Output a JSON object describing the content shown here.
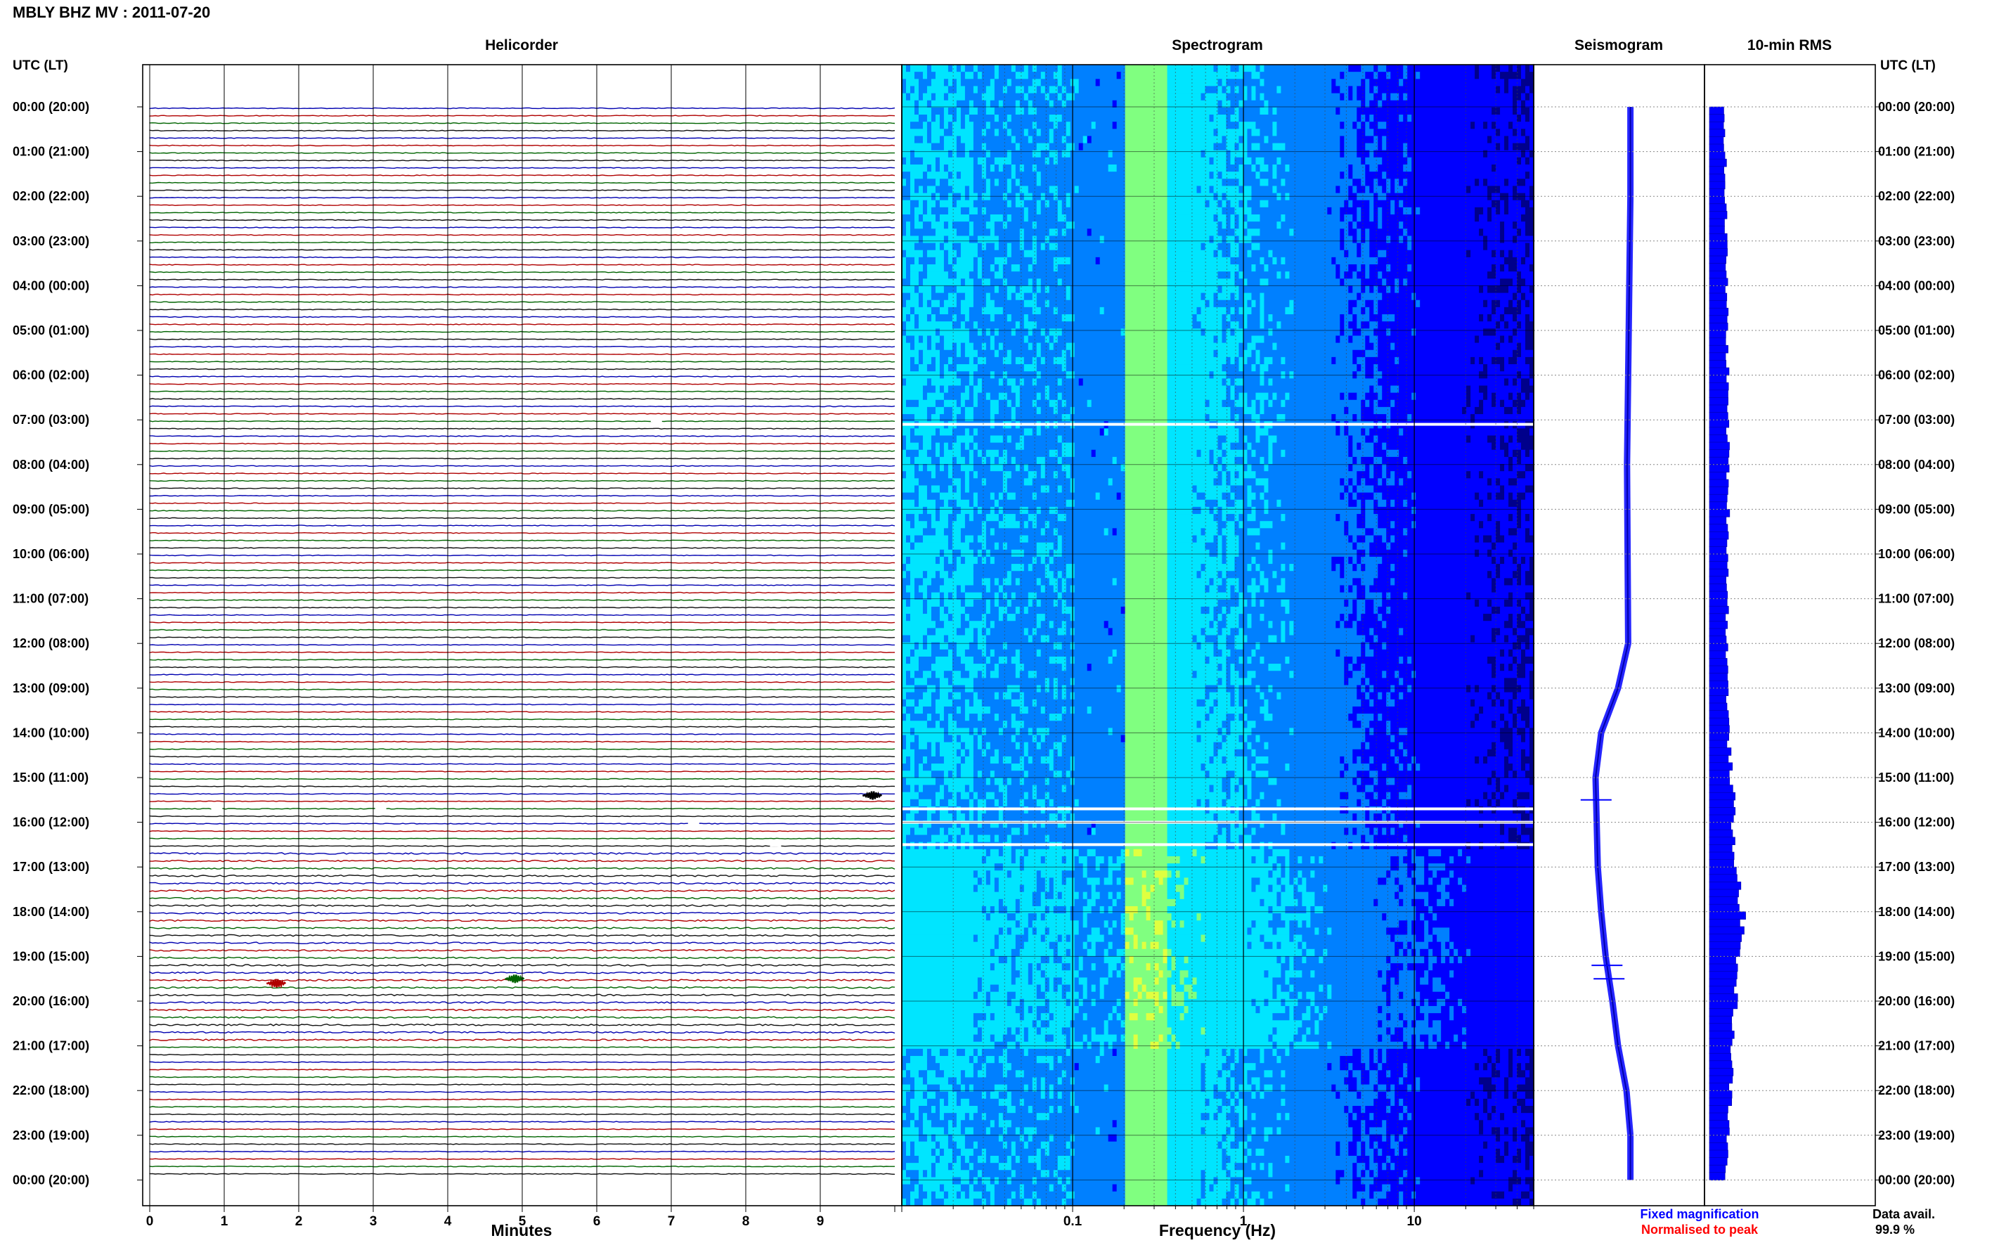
{
  "header": {
    "title": "MBLY BHZ MV : 2011-07-20"
  },
  "chart_data": {
    "type": "composite",
    "panels": {
      "helicorder": "Helicorder",
      "spectrogram": "Spectrogram",
      "seismogram": "Seismogram",
      "rms": "10-min RMS"
    },
    "time_axis_label": "UTC (LT)",
    "time_labels": [
      "00:00 (20:00)",
      "01:00 (21:00)",
      "02:00 (22:00)",
      "03:00 (23:00)",
      "04:00 (00:00)",
      "05:00 (01:00)",
      "06:00 (02:00)",
      "07:00 (03:00)",
      "08:00 (04:00)",
      "09:00 (05:00)",
      "10:00 (06:00)",
      "11:00 (07:00)",
      "12:00 (08:00)",
      "13:00 (09:00)",
      "14:00 (10:00)",
      "15:00 (11:00)",
      "16:00 (12:00)",
      "17:00 (13:00)",
      "18:00 (14:00)",
      "19:00 (15:00)",
      "20:00 (16:00)",
      "21:00 (17:00)",
      "22:00 (18:00)",
      "23:00 (19:00)",
      "00:00 (20:00)"
    ],
    "helicorder": {
      "xlabel": "Minutes",
      "xticks": [
        "0",
        "1",
        "2",
        "3",
        "4",
        "5",
        "6",
        "7",
        "8",
        "9"
      ],
      "xlim": [
        0,
        10
      ],
      "lines_per_hour": 6,
      "trace_colors": [
        "#0000b0",
        "#b00000",
        "#006400",
        "#111111"
      ],
      "events": [
        {
          "hour": 15.4,
          "minute": 9.7,
          "color": "#000000"
        },
        {
          "hour": 19.5,
          "minute": 4.9,
          "color": "#006400"
        },
        {
          "hour": 19.6,
          "minute": 1.7,
          "color": "#b00000"
        }
      ],
      "gaps": [
        {
          "hour": 7.1,
          "minute": 1.5
        },
        {
          "hour": 7.0,
          "minute": 6.8
        },
        {
          "hour": 15.7,
          "minute": 0.9
        },
        {
          "hour": 15.7,
          "minute": 3.1
        },
        {
          "hour": 16.0,
          "minute": 7.3
        },
        {
          "hour": 16.5,
          "minute": 8.4
        }
      ]
    },
    "spectrogram": {
      "xlabel": "Frequency (Hz)",
      "scale": "log",
      "xlim": [
        0.01,
        50
      ],
      "xticks": [
        0.1,
        1,
        10
      ],
      "xtick_labels": [
        "0.1",
        "1",
        "10"
      ],
      "colormap": [
        "#00008b",
        "#0000ff",
        "#0080ff",
        "#00e5ff",
        "#80ff80",
        "#e0ff40"
      ],
      "gaps_hours": [
        7.1,
        15.7,
        16.0,
        16.5
      ]
    },
    "seismogram": {
      "color": "#0000ff",
      "hours": [
        0,
        2,
        4,
        6,
        8,
        10,
        12,
        13,
        14,
        15,
        16,
        17,
        18,
        19,
        20,
        21,
        22,
        23,
        24
      ],
      "offset": [
        0.02,
        0.02,
        0.0,
        -0.02,
        -0.04,
        -0.03,
        -0.02,
        -0.2,
        -0.5,
        -0.6,
        -0.58,
        -0.56,
        -0.5,
        -0.42,
        -0.3,
        -0.2,
        -0.05,
        0.02,
        0.02
      ],
      "spikes_hours": [
        15.5,
        19.2,
        19.5
      ]
    },
    "rms": {
      "color": "#0000ff",
      "hours": [
        0,
        3,
        6,
        9,
        12,
        14,
        15.5,
        16,
        17,
        18,
        19,
        20,
        21,
        22,
        23,
        24
      ],
      "values": [
        0.5,
        0.55,
        0.6,
        0.62,
        0.58,
        0.62,
        0.8,
        0.75,
        0.9,
        1.1,
        0.95,
        0.85,
        0.75,
        0.7,
        0.6,
        0.55
      ],
      "xlim": [
        0,
        1.4
      ]
    },
    "legend": {
      "fixed": {
        "text": "Fixed magnification",
        "color": "#0000ff"
      },
      "normalised": {
        "text": "Normalised to peak",
        "color": "#ff0000"
      }
    },
    "data_availability": {
      "label": "Data avail.",
      "value": "99.9 %"
    }
  }
}
